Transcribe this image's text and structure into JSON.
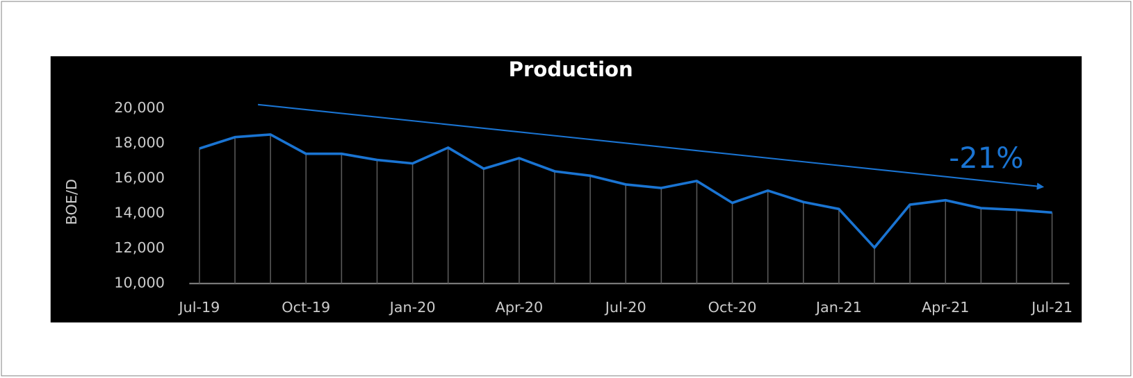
{
  "chart_data": {
    "type": "line",
    "title": "Production",
    "y_label": "BOE/D",
    "annotation": "-21%",
    "categories": [
      "Jul-19",
      null,
      null,
      "Oct-19",
      null,
      null,
      "Jan-20",
      null,
      null,
      "Apr-20",
      null,
      null,
      "Jul-20",
      null,
      null,
      "Oct-20",
      null,
      null,
      "Jan-21",
      null,
      null,
      "Apr-21",
      null,
      null,
      "Jul-21"
    ],
    "series": [
      {
        "name": "Production",
        "color": "#1a74d2",
        "values": [
          17700,
          18350,
          18500,
          17400,
          17400,
          17050,
          16850,
          17750,
          16550,
          17150,
          16400,
          16150,
          15650,
          15450,
          15850,
          14600,
          15300,
          14650,
          14250,
          12050,
          14500,
          14750,
          14300,
          14200,
          14050
        ]
      }
    ],
    "ylim": [
      10000,
      20000
    ],
    "yticks": [
      {
        "value": 10000,
        "label": "10,000"
      },
      {
        "value": 12000,
        "label": "12,000"
      },
      {
        "value": 14000,
        "label": "14,000"
      },
      {
        "value": 16000,
        "label": "16,000"
      },
      {
        "value": 18000,
        "label": "18,000"
      },
      {
        "value": 20000,
        "label": "20,000"
      }
    ],
    "grid": false,
    "drop_lines": true
  }
}
